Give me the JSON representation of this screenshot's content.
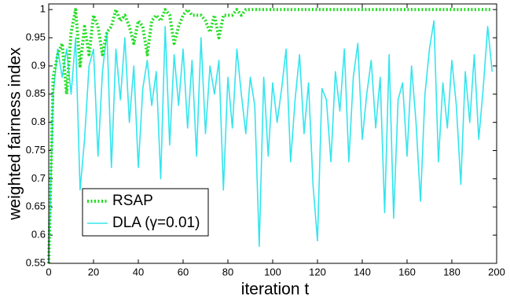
{
  "chart_data": {
    "type": "line",
    "xlabel": "iteration t",
    "ylabel": "weighted fairness index",
    "x": [
      0,
      2,
      4,
      6,
      8,
      10,
      12,
      14,
      16,
      18,
      20,
      22,
      24,
      26,
      28,
      30,
      32,
      34,
      36,
      38,
      40,
      42,
      44,
      46,
      48,
      50,
      52,
      54,
      56,
      58,
      60,
      62,
      64,
      66,
      68,
      70,
      72,
      74,
      76,
      78,
      80,
      82,
      84,
      86,
      88,
      90,
      92,
      94,
      96,
      98,
      100,
      102,
      104,
      106,
      108,
      110,
      112,
      114,
      116,
      118,
      120,
      122,
      124,
      126,
      128,
      130,
      132,
      134,
      136,
      138,
      140,
      142,
      144,
      146,
      148,
      150,
      152,
      154,
      156,
      158,
      160,
      162,
      164,
      166,
      168,
      170,
      172,
      174,
      176,
      178,
      180,
      182,
      184,
      186,
      188,
      190,
      192,
      194,
      196,
      198
    ],
    "series": [
      {
        "name": "RSAP",
        "color": "#22dd22",
        "dash": "dotted",
        "values": [
          0.55,
          0.88,
          0.92,
          0.94,
          0.85,
          0.96,
          1.0,
          0.9,
          0.97,
          0.92,
          0.99,
          0.97,
          0.92,
          0.96,
          0.97,
          1.0,
          0.98,
          0.99,
          0.97,
          0.94,
          0.98,
          0.97,
          0.92,
          0.98,
          0.99,
          0.98,
          1.0,
          0.99,
          0.94,
          0.97,
          0.99,
          1.0,
          0.99,
          0.99,
          0.99,
          0.98,
          0.96,
          0.99,
          0.95,
          0.99,
          0.99,
          0.99,
          1.0,
          0.99,
          1.0,
          1.0,
          1.0,
          1.0,
          1.0,
          1.0,
          1.0,
          1.0,
          1.0,
          1.0,
          1.0,
          1.0,
          1.0,
          1.0,
          1.0,
          1.0,
          1.0,
          1.0,
          1.0,
          1.0,
          1.0,
          1.0,
          1.0,
          1.0,
          1.0,
          1.0,
          1.0,
          1.0,
          1.0,
          1.0,
          1.0,
          1.0,
          1.0,
          1.0,
          1.0,
          1.0,
          1.0,
          1.0,
          1.0,
          1.0,
          1.0,
          1.0,
          1.0,
          1.0,
          1.0,
          1.0,
          1.0,
          1.0,
          1.0,
          1.0,
          1.0,
          1.0,
          1.0,
          1.0,
          1.0,
          1.0
        ]
      },
      {
        "name": "DLA (γ=0.01)",
        "color": "#33e5ee",
        "dash": "solid",
        "values": [
          0.55,
          0.85,
          0.93,
          0.88,
          0.93,
          0.85,
          0.95,
          0.68,
          0.77,
          0.9,
          0.93,
          0.74,
          0.89,
          0.96,
          0.72,
          0.93,
          0.84,
          0.95,
          0.8,
          0.9,
          0.72,
          0.86,
          0.91,
          0.83,
          0.89,
          0.7,
          0.97,
          0.76,
          0.92,
          0.83,
          0.93,
          0.79,
          0.91,
          0.74,
          0.95,
          0.78,
          0.9,
          0.85,
          0.91,
          0.68,
          0.88,
          0.79,
          0.93,
          0.85,
          0.78,
          0.88,
          0.83,
          0.58,
          0.88,
          0.74,
          0.87,
          0.8,
          0.86,
          0.93,
          0.73,
          0.84,
          0.92,
          0.78,
          0.87,
          0.69,
          0.59,
          0.86,
          0.84,
          0.73,
          0.89,
          0.82,
          0.93,
          0.73,
          0.88,
          0.94,
          0.77,
          0.85,
          0.91,
          0.79,
          0.88,
          0.64,
          0.92,
          0.63,
          0.84,
          0.87,
          0.74,
          0.9,
          0.8,
          0.66,
          0.85,
          0.93,
          0.98,
          0.73,
          0.87,
          0.79,
          0.91,
          0.83,
          0.69,
          0.89,
          0.8,
          0.92,
          0.77,
          0.86,
          0.97,
          0.89
        ]
      }
    ],
    "xlim": [
      0,
      200
    ],
    "xticks": [
      0,
      20,
      40,
      60,
      80,
      100,
      120,
      140,
      160,
      180,
      200
    ],
    "ylim": [
      0.55,
      1.01
    ],
    "yticks": [
      0.55,
      0.6,
      0.65,
      0.7,
      0.75,
      0.8,
      0.85,
      0.9,
      0.95,
      1
    ],
    "grid": false,
    "legend": "lower left"
  }
}
